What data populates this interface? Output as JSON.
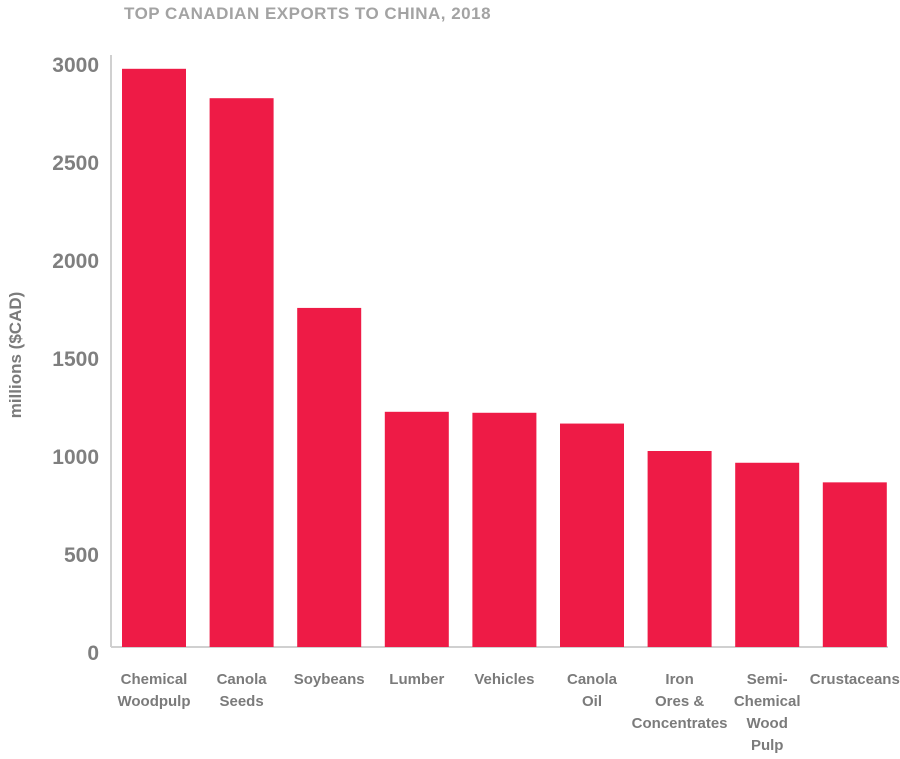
{
  "chart_data": {
    "type": "bar",
    "title": "TOP CANADIAN EXPORTS TO CHINA, 2018",
    "xlabel": "",
    "ylabel": "millions ($CAD)",
    "categories": [
      "Chemical Woodpulp",
      "Canola Seeds",
      "Soybeans",
      "Lumber",
      "Vehicles",
      "Canola Oil",
      "Iron Ores & Concentrates",
      "Semi-Chemical Wood Pulp",
      "Crustaceans"
    ],
    "category_lines": [
      [
        "Chemical",
        "Woodpulp"
      ],
      [
        "Canola",
        "Seeds"
      ],
      [
        "Soybeans"
      ],
      [
        "Lumber"
      ],
      [
        "Vehicles"
      ],
      [
        "Canola",
        "Oil"
      ],
      [
        "Iron",
        "Ores &",
        "Concentrates"
      ],
      [
        "Semi-",
        "Chemical",
        "Wood",
        "Pulp"
      ],
      [
        "Crustaceans"
      ]
    ],
    "values": [
      2950,
      2800,
      1730,
      1200,
      1195,
      1140,
      1000,
      940,
      840
    ],
    "ylim": [
      0,
      3000
    ],
    "yticks": [
      0,
      500,
      1000,
      1500,
      2000,
      2500,
      3000
    ],
    "grid": false,
    "bar_color": "#ee1b46"
  }
}
